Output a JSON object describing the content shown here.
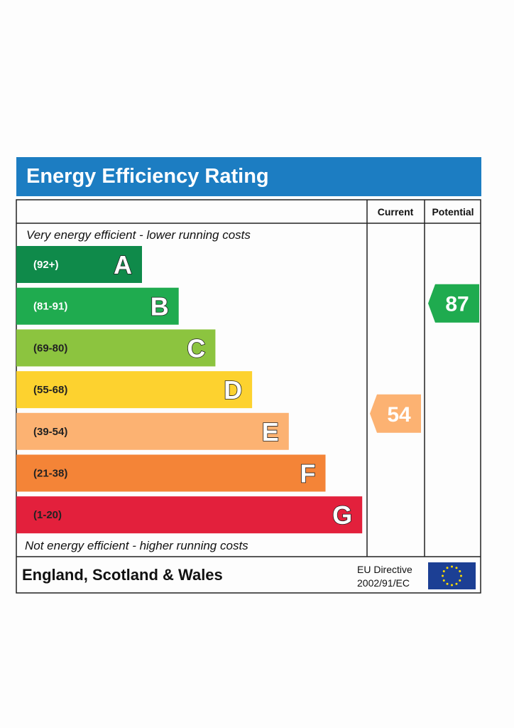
{
  "chart_data": {
    "type": "bar",
    "title": "Energy Efficiency Rating",
    "top_note": "Very energy efficient - lower running costs",
    "bottom_note": "Not energy efficient - higher running costs",
    "columns": [
      "Current",
      "Potential"
    ],
    "bands": [
      {
        "letter": "A",
        "range": "(92+)",
        "min": 92,
        "max": 100,
        "color": "#0f8a4a",
        "label_color": "#ffffff"
      },
      {
        "letter": "B",
        "range": "(81-91)",
        "min": 81,
        "max": 91,
        "color": "#1fab4f",
        "label_color": "#ffffff"
      },
      {
        "letter": "C",
        "range": "(69-80)",
        "min": 69,
        "max": 80,
        "color": "#8cc43f",
        "label_color": "#222222"
      },
      {
        "letter": "D",
        "range": "(55-68)",
        "min": 55,
        "max": 68,
        "color": "#fdd22f",
        "label_color": "#222222"
      },
      {
        "letter": "E",
        "range": "(39-54)",
        "min": 39,
        "max": 54,
        "color": "#fcb272",
        "label_color": "#222222"
      },
      {
        "letter": "F",
        "range": "(21-38)",
        "min": 21,
        "max": 38,
        "color": "#f48437",
        "label_color": "#222222"
      },
      {
        "letter": "G",
        "range": "(1-20)",
        "min": 1,
        "max": 20,
        "color": "#e3203c",
        "label_color": "#222222"
      }
    ],
    "current": {
      "value": 54,
      "band": "E",
      "color": "#fcb272"
    },
    "potential": {
      "value": 87,
      "band": "B",
      "color": "#1fab4f"
    },
    "region": "England, Scotland & Wales",
    "directive_line1": "EU Directive",
    "directive_line2": "2002/91/EC",
    "title_bar_color": "#1c7dc2",
    "flag_color": "#1c3f94",
    "star_color": "#ffdd00"
  }
}
